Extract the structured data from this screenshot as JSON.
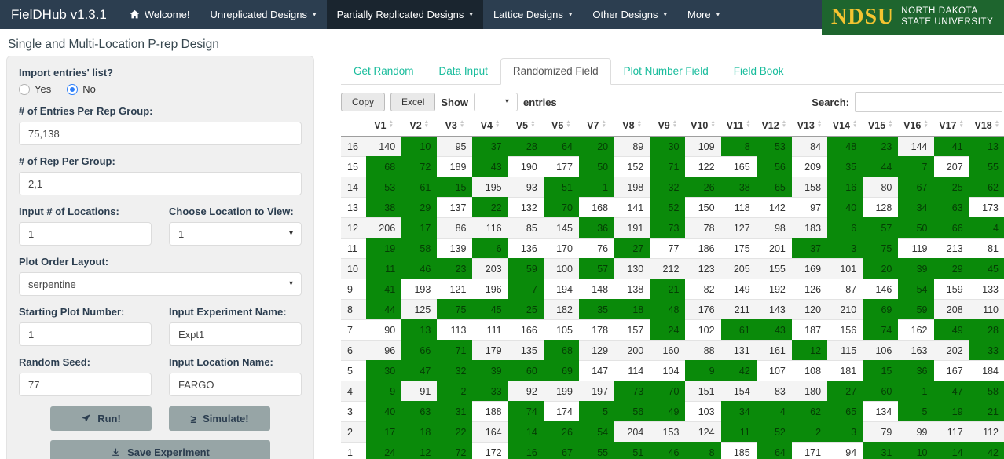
{
  "navbar": {
    "brand": "FielDHub v1.3.1",
    "items": [
      {
        "label": "Welcome!",
        "icon": "home",
        "dropdown": false,
        "active": false
      },
      {
        "label": "Unreplicated Designs",
        "dropdown": true,
        "active": false
      },
      {
        "label": "Partially Replicated Designs",
        "dropdown": true,
        "active": true
      },
      {
        "label": "Lattice Designs",
        "dropdown": true,
        "active": false
      },
      {
        "label": "Other Designs",
        "dropdown": true,
        "active": false
      },
      {
        "label": "More",
        "dropdown": true,
        "active": false
      }
    ],
    "logo": {
      "acronym": "NDSU",
      "line1": "NORTH DAKOTA",
      "line2": "STATE UNIVERSITY"
    }
  },
  "page_title": "Single and Multi-Location P-rep Design",
  "form": {
    "import_label": "Import entries' list?",
    "import_options": [
      "Yes",
      "No"
    ],
    "import_selected": "No",
    "entries_label": "# of Entries Per Rep Group:",
    "entries_value": "75,138",
    "rep_label": "# of Rep Per Group:",
    "rep_value": "2,1",
    "locations_label": "Input # of Locations:",
    "locations_value": "1",
    "choose_location_label": "Choose Location to View:",
    "choose_location_value": "1",
    "plot_order_label": "Plot Order Layout:",
    "plot_order_value": "serpentine",
    "starting_plot_label": "Starting Plot Number:",
    "starting_plot_value": "1",
    "experiment_name_label": "Input Experiment Name:",
    "experiment_name_value": "Expt1",
    "random_seed_label": "Random Seed:",
    "random_seed_value": "77",
    "location_name_label": "Input Location Name:",
    "location_name_value": "FARGO",
    "run_label": "Run!",
    "simulate_label": "Simulate!",
    "save_label": "Save Experiment"
  },
  "tabs": [
    {
      "label": "Get Random",
      "active": false
    },
    {
      "label": "Data Input",
      "active": false
    },
    {
      "label": "Randomized Field",
      "active": true
    },
    {
      "label": "Plot Number Field",
      "active": false
    },
    {
      "label": "Field Book",
      "active": false
    }
  ],
  "table_controls": {
    "copy_label": "Copy",
    "excel_label": "Excel",
    "show_label": "Show",
    "show_value": "",
    "entries_label": "entries",
    "search_label": "Search:",
    "search_value": ""
  },
  "colors": {
    "navbar": "#2c3e50",
    "navbar_active": "#1a252f",
    "cell_green": "#0a8a0a",
    "tab_teal": "#18bc9c",
    "ndsu_green": "#1e652e",
    "ndsu_gold": "#f4c430",
    "button_gray": "#97a5a6",
    "radio_blue": "#2d7ff9"
  },
  "field_table": {
    "columns": [
      "V1",
      "V2",
      "V3",
      "V4",
      "V5",
      "V6",
      "V7",
      "V8",
      "V9",
      "V10",
      "V11",
      "V12",
      "V13",
      "V14",
      "V15",
      "V16",
      "V17",
      "V18"
    ],
    "rows": [
      {
        "name": "16",
        "values": [
          140,
          10,
          95,
          37,
          28,
          64,
          20,
          89,
          30,
          109,
          8,
          53,
          84,
          48,
          23,
          144,
          41,
          13
        ],
        "green": [
          0,
          1,
          0,
          1,
          1,
          1,
          1,
          0,
          1,
          0,
          1,
          1,
          0,
          1,
          1,
          0,
          1,
          1
        ]
      },
      {
        "name": "15",
        "values": [
          68,
          72,
          189,
          43,
          190,
          177,
          50,
          152,
          71,
          122,
          165,
          56,
          209,
          35,
          44,
          7,
          207,
          55
        ],
        "green": [
          1,
          1,
          0,
          1,
          0,
          0,
          1,
          0,
          1,
          0,
          0,
          1,
          0,
          1,
          1,
          1,
          0,
          1
        ]
      },
      {
        "name": "14",
        "values": [
          53,
          61,
          15,
          195,
          93,
          51,
          1,
          198,
          32,
          26,
          38,
          65,
          158,
          16,
          80,
          67,
          25,
          62
        ],
        "green": [
          1,
          1,
          1,
          0,
          0,
          1,
          1,
          0,
          1,
          1,
          1,
          1,
          0,
          1,
          0,
          1,
          1,
          1
        ]
      },
      {
        "name": "13",
        "values": [
          38,
          29,
          137,
          22,
          132,
          70,
          168,
          141,
          52,
          150,
          118,
          142,
          97,
          40,
          128,
          34,
          63,
          173
        ],
        "green": [
          1,
          1,
          0,
          1,
          0,
          1,
          0,
          0,
          1,
          0,
          0,
          0,
          0,
          1,
          0,
          1,
          1,
          0
        ]
      },
      {
        "name": "12",
        "values": [
          206,
          17,
          86,
          116,
          85,
          145,
          36,
          191,
          73,
          78,
          127,
          98,
          183,
          6,
          57,
          50,
          66,
          4
        ],
        "green": [
          0,
          1,
          0,
          0,
          0,
          0,
          1,
          0,
          1,
          0,
          0,
          0,
          0,
          1,
          1,
          1,
          1,
          1
        ]
      },
      {
        "name": "11",
        "values": [
          19,
          58,
          139,
          6,
          136,
          170,
          76,
          27,
          77,
          186,
          175,
          201,
          37,
          3,
          75,
          119,
          213,
          81
        ],
        "green": [
          1,
          1,
          0,
          1,
          0,
          0,
          0,
          1,
          0,
          0,
          0,
          0,
          1,
          1,
          1,
          0,
          0,
          0
        ]
      },
      {
        "name": "10",
        "values": [
          11,
          46,
          23,
          203,
          59,
          100,
          57,
          130,
          212,
          123,
          205,
          155,
          169,
          101,
          20,
          39,
          29,
          45
        ],
        "green": [
          1,
          1,
          1,
          0,
          1,
          0,
          1,
          0,
          0,
          0,
          0,
          0,
          0,
          0,
          1,
          1,
          1,
          1
        ]
      },
      {
        "name": "9",
        "values": [
          41,
          193,
          121,
          196,
          7,
          194,
          148,
          138,
          21,
          82,
          149,
          192,
          126,
          87,
          146,
          54,
          159,
          133
        ],
        "green": [
          1,
          0,
          0,
          0,
          1,
          0,
          0,
          0,
          1,
          0,
          0,
          0,
          0,
          0,
          0,
          1,
          0,
          0
        ]
      },
      {
        "name": "8",
        "values": [
          44,
          125,
          75,
          45,
          25,
          182,
          35,
          18,
          48,
          176,
          211,
          143,
          120,
          210,
          69,
          59,
          208,
          110
        ],
        "green": [
          1,
          0,
          1,
          1,
          1,
          0,
          1,
          1,
          1,
          0,
          0,
          0,
          0,
          0,
          1,
          1,
          0,
          0
        ]
      },
      {
        "name": "7",
        "values": [
          90,
          13,
          113,
          111,
          166,
          105,
          178,
          157,
          24,
          102,
          61,
          43,
          187,
          156,
          74,
          162,
          49,
          28
        ],
        "green": [
          0,
          1,
          0,
          0,
          0,
          0,
          0,
          0,
          1,
          0,
          1,
          1,
          0,
          0,
          1,
          0,
          1,
          1
        ]
      },
      {
        "name": "6",
        "values": [
          96,
          66,
          71,
          179,
          135,
          68,
          129,
          200,
          160,
          88,
          131,
          161,
          12,
          115,
          106,
          163,
          202,
          33
        ],
        "green": [
          0,
          1,
          1,
          0,
          0,
          1,
          0,
          0,
          0,
          0,
          0,
          0,
          1,
          0,
          0,
          0,
          0,
          1
        ]
      },
      {
        "name": "5",
        "values": [
          30,
          47,
          32,
          39,
          60,
          69,
          147,
          114,
          104,
          9,
          42,
          107,
          108,
          181,
          15,
          36,
          167,
          184
        ],
        "green": [
          1,
          1,
          1,
          1,
          1,
          1,
          0,
          0,
          0,
          1,
          1,
          0,
          0,
          0,
          1,
          1,
          0,
          0
        ]
      },
      {
        "name": "4",
        "values": [
          9,
          91,
          2,
          33,
          92,
          199,
          197,
          73,
          70,
          151,
          154,
          83,
          180,
          27,
          60,
          1,
          47,
          58
        ],
        "green": [
          1,
          0,
          1,
          1,
          0,
          0,
          0,
          1,
          1,
          0,
          0,
          0,
          0,
          1,
          1,
          1,
          1,
          1
        ]
      },
      {
        "name": "3",
        "values": [
          40,
          63,
          31,
          188,
          74,
          174,
          5,
          56,
          49,
          103,
          34,
          4,
          62,
          65,
          134,
          5,
          19,
          21
        ],
        "green": [
          1,
          1,
          1,
          0,
          1,
          0,
          1,
          1,
          1,
          0,
          1,
          1,
          1,
          1,
          0,
          1,
          1,
          1
        ]
      },
      {
        "name": "2",
        "values": [
          17,
          18,
          22,
          164,
          14,
          26,
          54,
          204,
          153,
          124,
          11,
          52,
          2,
          3,
          79,
          99,
          117,
          112
        ],
        "green": [
          1,
          1,
          1,
          0,
          1,
          1,
          1,
          0,
          0,
          0,
          1,
          1,
          1,
          1,
          0,
          0,
          0,
          0
        ]
      },
      {
        "name": "1",
        "values": [
          24,
          12,
          72,
          172,
          16,
          67,
          55,
          51,
          46,
          8,
          185,
          64,
          171,
          94,
          31,
          10,
          14,
          42
        ],
        "green": [
          1,
          1,
          1,
          0,
          1,
          1,
          1,
          1,
          1,
          1,
          0,
          1,
          0,
          0,
          1,
          1,
          1,
          1
        ]
      }
    ]
  }
}
